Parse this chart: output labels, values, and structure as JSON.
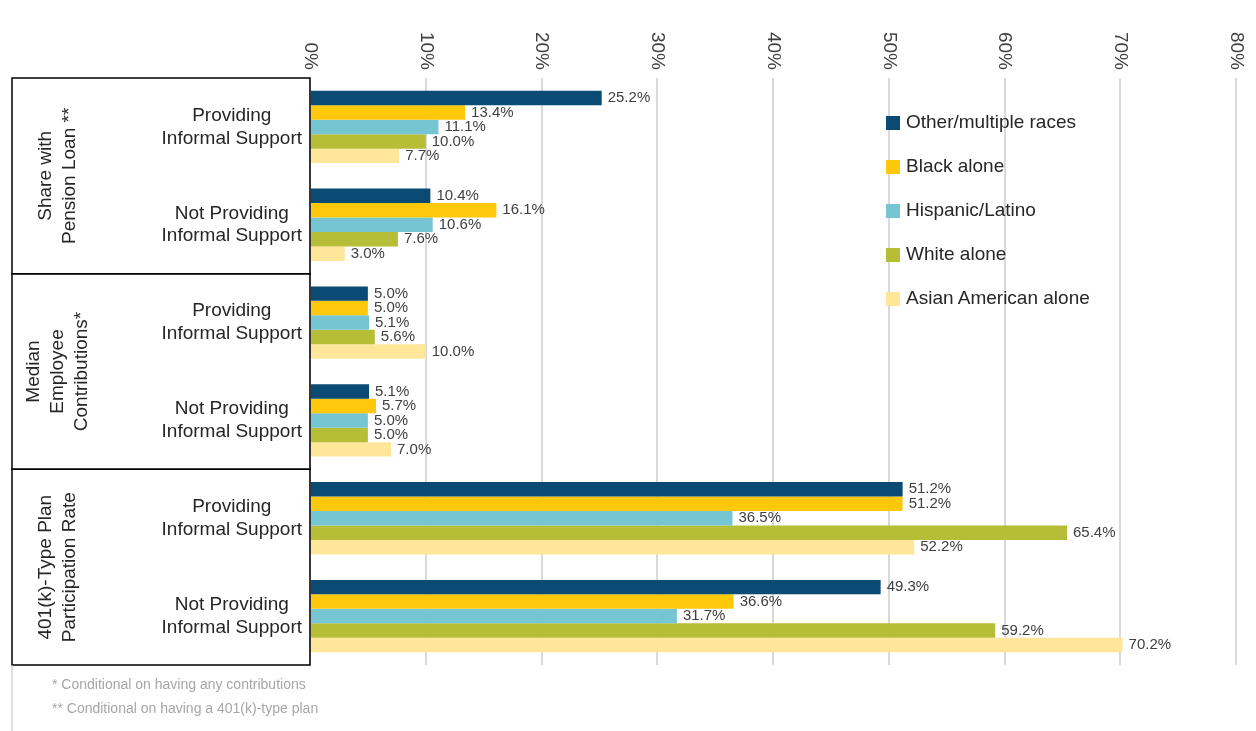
{
  "chart_data": {
    "type": "bar",
    "orientation": "horizontal",
    "categories": [
      "Providing Informal Support",
      "Not Providing Informal Support",
      "Providing Informal Support",
      "Not Providing Informal Support",
      "Providing Informal Support",
      "Not Providing Informal Support"
    ],
    "series": [
      {
        "name": "Other/multiple races",
        "color": "#0b4a73",
        "values": [
          25.2,
          10.4,
          5.0,
          5.1,
          51.2,
          49.3
        ],
        "value_labels": [
          "25.2%",
          "10.4%",
          "5.0%",
          "5.1%",
          "51.2%",
          "49.3%"
        ]
      },
      {
        "name": "Black alone",
        "color": "#ffc80a",
        "values": [
          13.4,
          16.1,
          5.0,
          5.7,
          51.2,
          36.6
        ],
        "value_labels": [
          "13.4%",
          "16.1%",
          "5.0%",
          "5.7%",
          "51.2%",
          "36.6%"
        ]
      },
      {
        "name": "Hispanic/Latino",
        "color": "#76c5d3",
        "values": [
          11.1,
          10.6,
          5.1,
          5.0,
          36.5,
          31.7
        ],
        "value_labels": [
          "11.1%",
          "10.6%",
          "5.1%",
          "5.0%",
          "36.5%",
          "31.7%"
        ]
      },
      {
        "name": "White alone",
        "color": "#b6bd36",
        "values": [
          10.0,
          7.6,
          5.6,
          5.0,
          65.4,
          59.2
        ],
        "value_labels": [
          "10.0%",
          "7.6%",
          "5.6%",
          "5.0%",
          "65.4%",
          "59.2%"
        ]
      },
      {
        "name": "Asian American alone",
        "color": "#ffe699",
        "values": [
          7.7,
          3.0,
          10.0,
          7.0,
          52.2,
          70.2
        ],
        "value_labels": [
          "7.7%",
          "3.0%",
          "10.0%",
          "7.0%",
          "52.2%",
          "70.2%"
        ]
      }
    ],
    "xlim": [
      0,
      80
    ],
    "xticks": [
      {
        "value": 0,
        "label": "0%"
      },
      {
        "value": 10,
        "label": "10%"
      },
      {
        "value": 20,
        "label": "20%"
      },
      {
        "value": 30,
        "label": "30%"
      },
      {
        "value": 40,
        "label": "40%"
      },
      {
        "value": 50,
        "label": "50%"
      },
      {
        "value": 60,
        "label": "60%"
      },
      {
        "value": 70,
        "label": "70%"
      },
      {
        "value": 80,
        "label": "80%"
      }
    ],
    "grid": "x",
    "legend": "top right",
    "annotations": [
      "Share with Pension Loan **",
      "Median Employee Contributions*",
      "401(k)-Type Plan Participation Rate",
      "* Conditional on having any contributions",
      "** Conditional on having a 401(k)-type plan"
    ]
  }
}
